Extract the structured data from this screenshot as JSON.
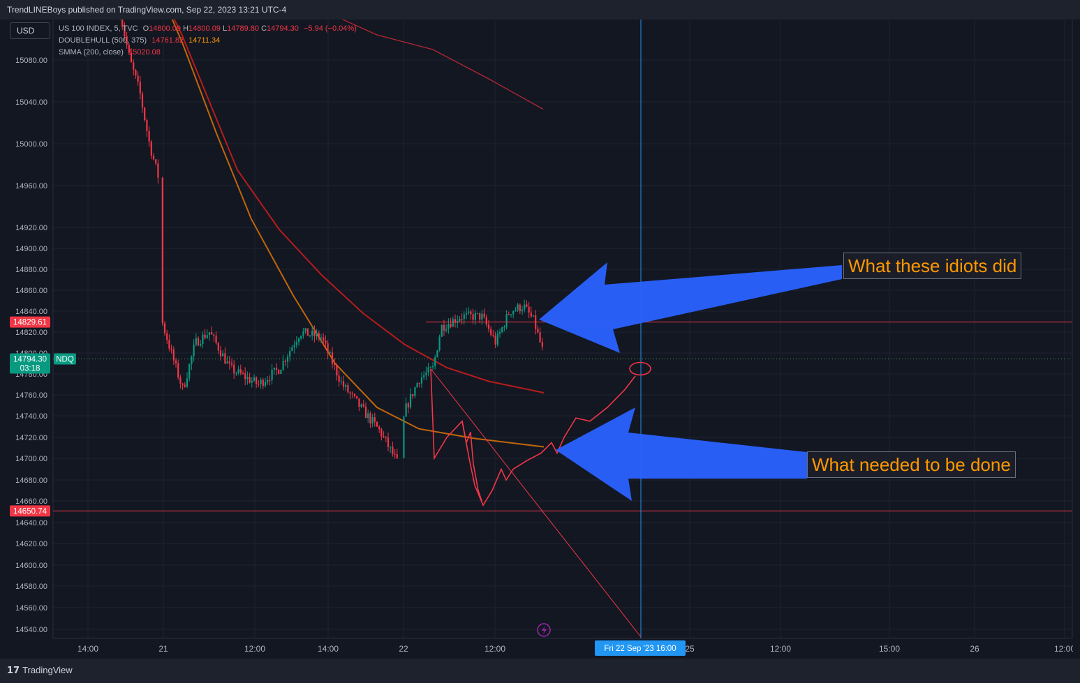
{
  "header": {
    "published": "TrendLINEBoys published on TradingView.com, Sep 22, 2023 13:21 UTC-4"
  },
  "currency": "USD",
  "legend": {
    "symbol": "US 100 INDEX, 5, TVC",
    "ohlc": [
      {
        "k": "O",
        "v": "14800.09"
      },
      {
        "k": "H",
        "v": "14800.09"
      },
      {
        "k": "L",
        "v": "14789.80"
      },
      {
        "k": "C",
        "v": "14794.30"
      }
    ],
    "change": "−5.94 (−0.04%)",
    "doublehull_name": "DOUBLEHULL (500, 375)",
    "doublehull_v1": "14761.82",
    "doublehull_v2": "14711.34",
    "smma_name": "SMMA (200, close)",
    "smma_value": "15020.08"
  },
  "chart_data": {
    "type": "line",
    "y_ticks": [
      "15080.00",
      "15040.00",
      "15000.00",
      "14960.00",
      "14920.00",
      "14900.00",
      "14880.00",
      "14860.00",
      "14840.00",
      "14820.00",
      "14800.00",
      "14780.00",
      "14760.00",
      "14740.00",
      "14720.00",
      "14700.00",
      "14680.00",
      "14660.00",
      "14640.00",
      "14620.00",
      "14600.00",
      "14580.00",
      "14560.00",
      "14540.00"
    ],
    "x_ticks": [
      "14:00",
      "21",
      "12:00",
      "14:00",
      "22",
      "12:00",
      "25",
      "12:00",
      "15:00",
      "26",
      "12:00"
    ],
    "price_label": {
      "value": "14794.30",
      "countdown": "03:18",
      "symbol": "NDQ"
    },
    "horizontal_levels": [
      14829.61,
      14650.74
    ],
    "level_labels": [
      "14829.61",
      "14650.74"
    ],
    "crosshair_time": "Fri 22 Sep '23   16:00",
    "smma_curve": [
      [
        15134,
        15134
      ],
      [
        15090,
        15090
      ],
      [
        15060,
        15060
      ],
      [
        15035,
        15035
      ],
      [
        15020,
        15020
      ]
    ],
    "hull_red": [
      15145,
      15105,
      15040,
      14975,
      14918,
      14875,
      14838,
      14808,
      14786,
      14773,
      14762
    ],
    "hull_orange": [
      15145,
      15095,
      15010,
      14928,
      14855,
      14790,
      14748,
      14728,
      14719,
      14711
    ],
    "projection_high": 14783,
    "projection_low": 14656,
    "colors": {
      "bull": "#089981",
      "bear": "#f23645",
      "hull_red": "#b71c1c",
      "hull_orange": "#c1660a",
      "smma": "#b22833",
      "drawing": "#f23645",
      "arrow": "#2962ff",
      "crosshair": "#2196f3"
    }
  },
  "callouts": [
    {
      "text": "What these idiots did"
    },
    {
      "text": "What needed to be done"
    }
  ]
}
